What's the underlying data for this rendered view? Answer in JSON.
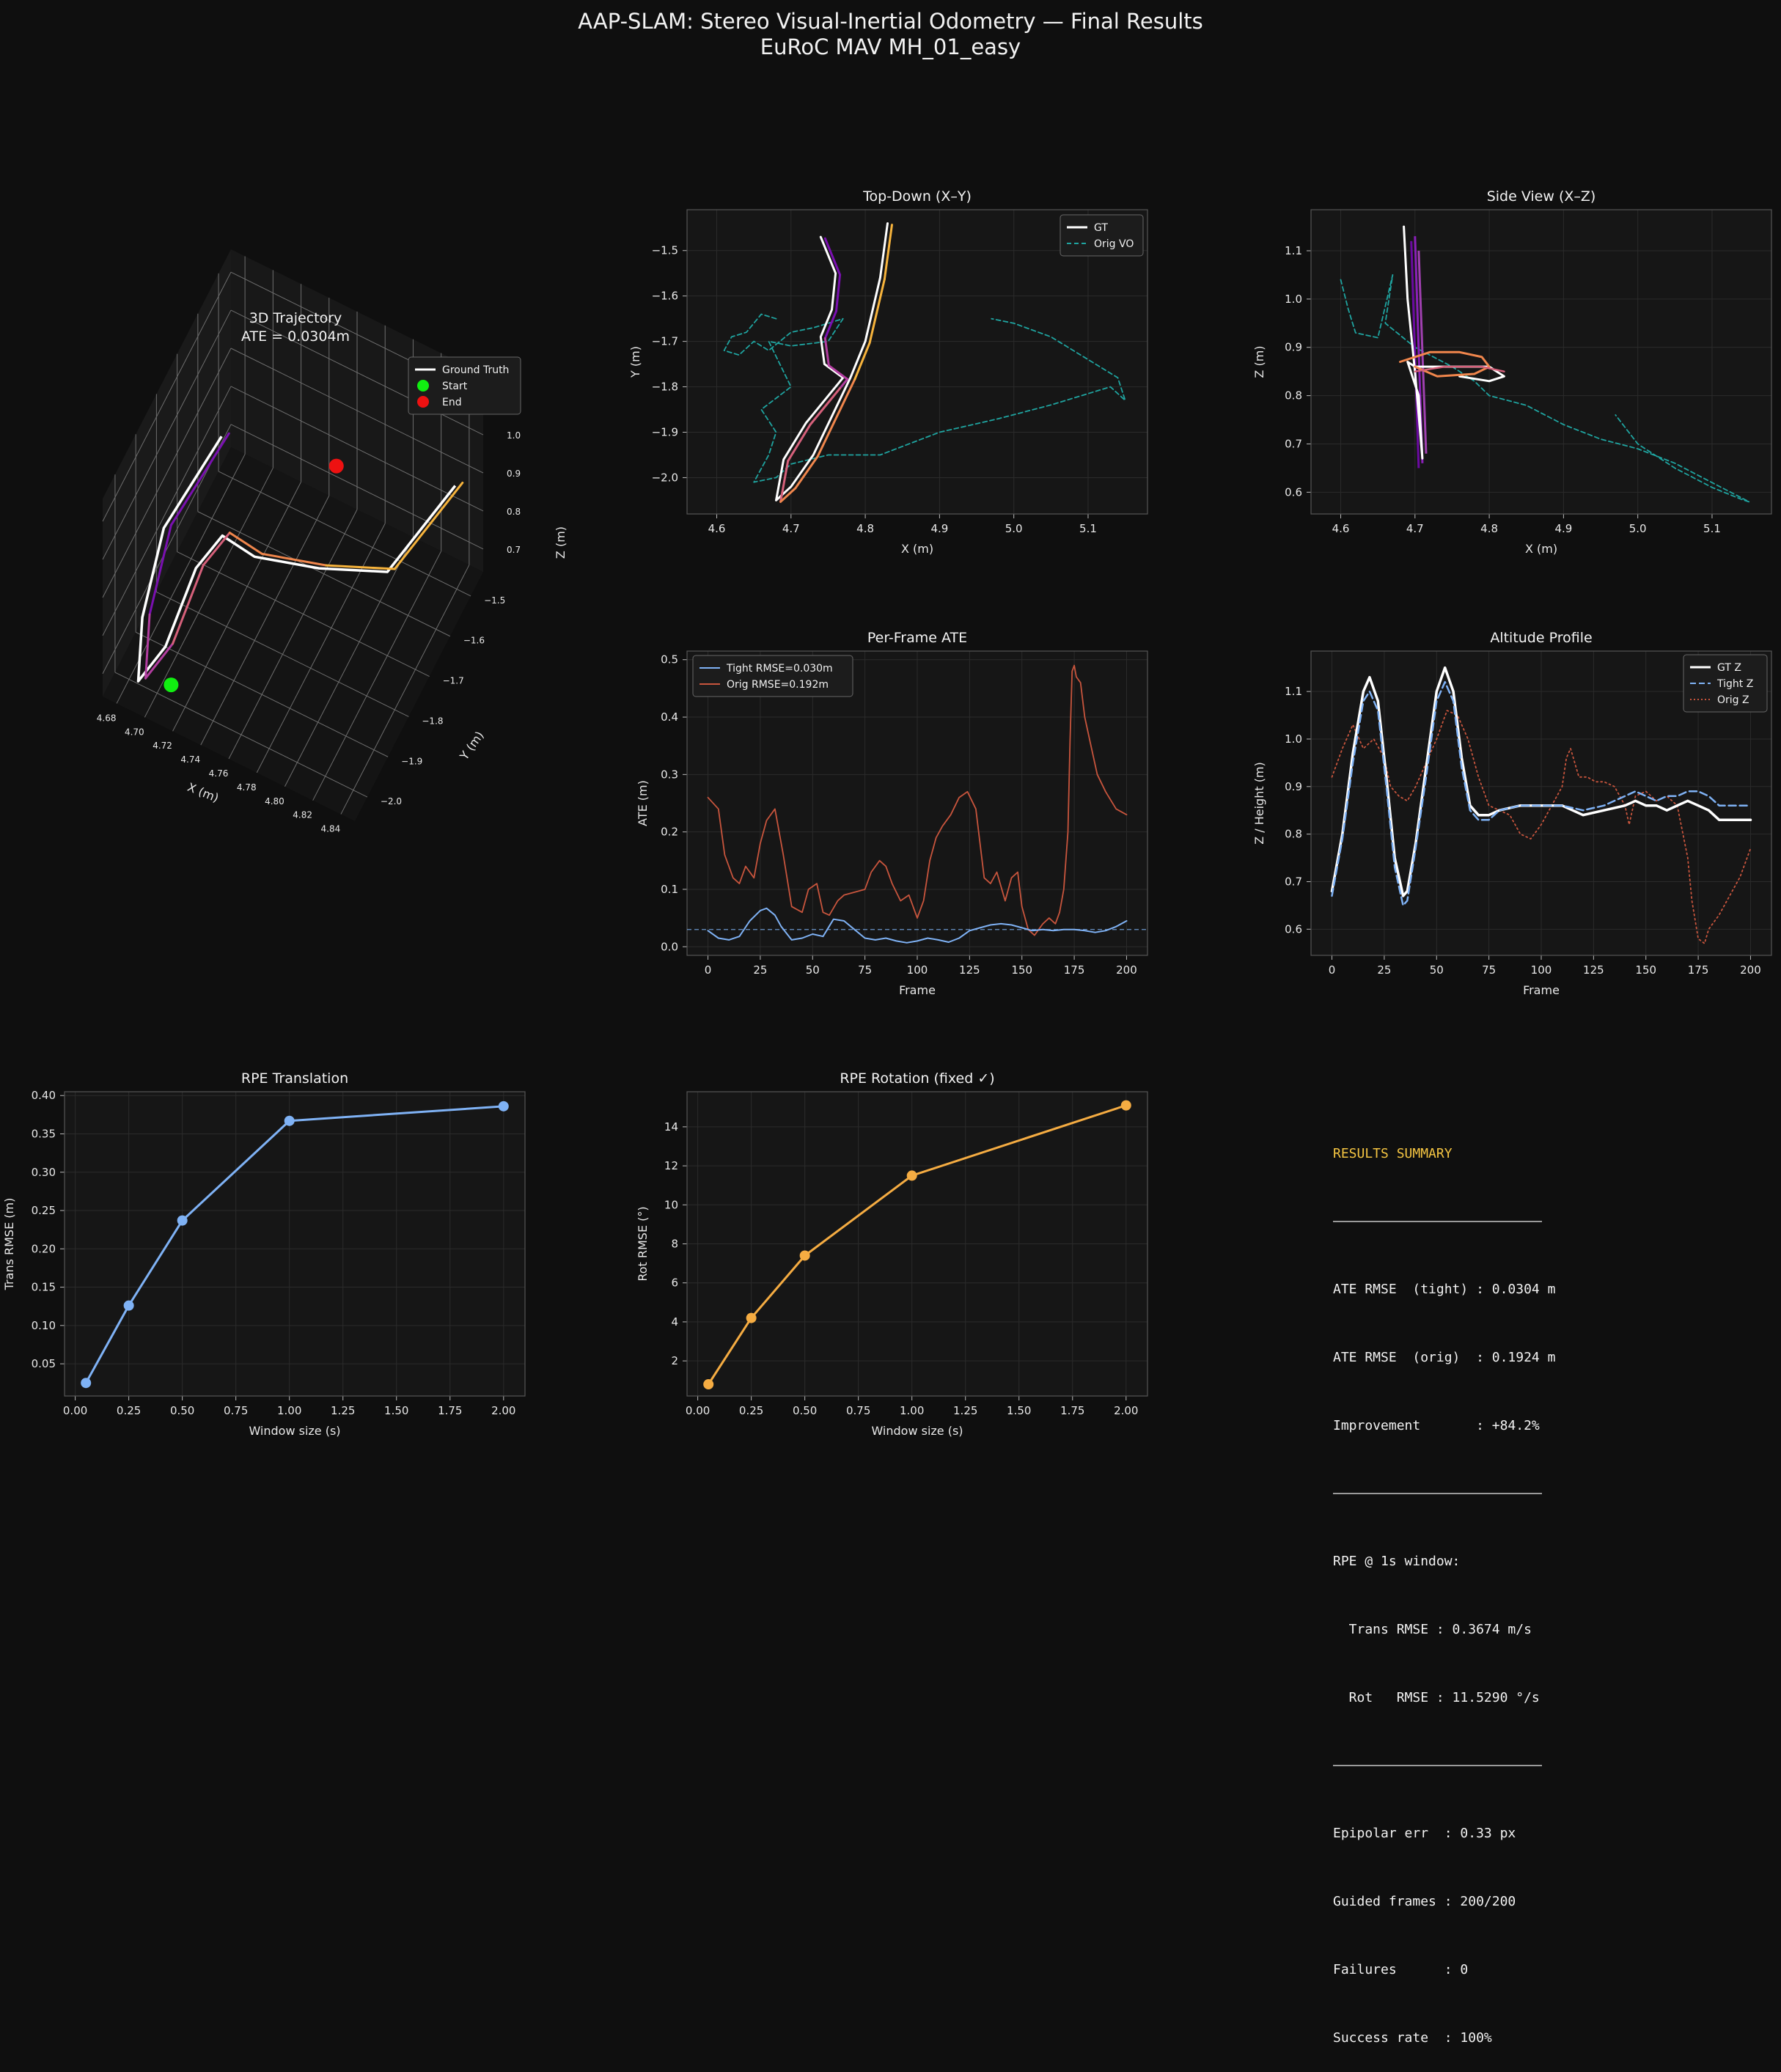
{
  "suptitle": {
    "line1": "AAP-SLAM: Stereo Visual-Inertial Odometry — Final Results",
    "line2": "EuRoC MAV MH_01_easy"
  },
  "colors": {
    "background": "#0f0f0f",
    "axes_bg": "#161616",
    "spine": "#555555",
    "grid": "#2b2b2b",
    "text": "#e8e8e8",
    "gt": "#ffffff",
    "tight": "#7fb2f5",
    "orig_ate": "#c8553d",
    "orig_vo": "#1fa4a0",
    "rpe_trans": "#7fb2f5",
    "rpe_rot": "#f5ac42",
    "accent": "#f5c542",
    "traj_gradient": [
      "#7a10b0",
      "#b23da0",
      "#d5607a",
      "#f0864c",
      "#f6b33c"
    ]
  },
  "chart_data": [
    {
      "id": "traj3d",
      "type": "line",
      "projection": "3d",
      "title": "3D Trajectory",
      "subtitle": "ATE = 0.0304m",
      "xlabel": "X (m)",
      "ylabel": "Y (m)",
      "zlabel": "Z (m)",
      "xlim": [
        4.67,
        4.85
      ],
      "ylim": [
        -2.06,
        -1.44
      ],
      "zlim": [
        0.64,
        1.16
      ],
      "xticks": [
        "4.68",
        "4.70",
        "4.72",
        "4.74",
        "4.76",
        "4.78",
        "4.80",
        "4.82",
        "4.84"
      ],
      "yticks": [
        "−1.5",
        "−1.6",
        "−1.7",
        "−1.8",
        "−1.9",
        "−2.0"
      ],
      "zticks": [
        "0.7",
        "0.8",
        "0.9",
        "1.0",
        "1.1"
      ],
      "legend": {
        "placement": "top-right",
        "entries": [
          "Ground Truth",
          "Start",
          "End"
        ]
      },
      "start_point": [
        4.71,
        -2.0,
        0.68
      ],
      "end_point": [
        4.76,
        -1.54,
        0.86
      ],
      "series": [
        {
          "name": "Ground Truth",
          "color": "#ffffff",
          "x": [
            4.715,
            4.69,
            4.685,
            4.688,
            4.7,
            4.71,
            4.72,
            4.74,
            4.78,
            4.82,
            4.83
          ],
          "y": [
            -1.79,
            -1.9,
            -1.97,
            -2.01,
            -1.96,
            -1.88,
            -1.82,
            -1.8,
            -1.76,
            -1.7,
            -1.44
          ],
          "z": [
            1.12,
            0.95,
            0.78,
            0.66,
            0.72,
            0.86,
            0.9,
            0.86,
            0.86,
            0.86,
            0.83
          ]
        }
      ]
    },
    {
      "id": "topdown",
      "type": "line",
      "title": "Top-Down (X–Y)",
      "xlabel": "X (m)",
      "ylabel": "Y (m)",
      "xlim": [
        4.56,
        5.18
      ],
      "ylim": [
        -2.08,
        -1.41
      ],
      "xticks": [
        4.6,
        4.7,
        4.8,
        4.9,
        5.0,
        5.1
      ],
      "yticks": [
        -1.5,
        -1.6,
        -1.7,
        -1.8,
        -1.9,
        -2.0
      ],
      "legend": {
        "placement": "top-right",
        "entries": [
          "GT",
          "Orig VO"
        ]
      },
      "series": [
        {
          "name": "GT",
          "style": "solid",
          "x": [
            4.74,
            4.76,
            4.755,
            4.74,
            4.745,
            4.77,
            4.76,
            4.72,
            4.69,
            4.68,
            4.7,
            4.73,
            4.78,
            4.8,
            4.82,
            4.83
          ],
          "y": [
            -1.47,
            -1.55,
            -1.63,
            -1.69,
            -1.75,
            -1.78,
            -1.8,
            -1.88,
            -1.96,
            -2.05,
            -2.02,
            -1.95,
            -1.78,
            -1.7,
            -1.56,
            -1.44
          ]
        },
        {
          "name": "Orig VO",
          "style": "dashed",
          "x": [
            4.68,
            4.66,
            4.64,
            4.62,
            4.61,
            4.63,
            4.65,
            4.67,
            4.7,
            4.73,
            4.75,
            4.77,
            4.75,
            4.7,
            4.67,
            4.7,
            4.66,
            4.68,
            4.67,
            4.65,
            4.68,
            4.7,
            4.75,
            4.82,
            4.9,
            4.98,
            5.05,
            5.13,
            5.15,
            5.14,
            5.1,
            5.05,
            5.0,
            4.97
          ],
          "y": [
            -1.65,
            -1.64,
            -1.68,
            -1.69,
            -1.72,
            -1.73,
            -1.7,
            -1.72,
            -1.68,
            -1.67,
            -1.66,
            -1.65,
            -1.7,
            -1.71,
            -1.7,
            -1.8,
            -1.85,
            -1.9,
            -1.95,
            -2.01,
            -2.0,
            -1.97,
            -1.95,
            -1.95,
            -1.9,
            -1.87,
            -1.84,
            -1.8,
            -1.83,
            -1.78,
            -1.74,
            -1.69,
            -1.66,
            -1.65
          ]
        }
      ]
    },
    {
      "id": "sideview",
      "type": "line",
      "title": "Side View (X–Z)",
      "xlabel": "X (m)",
      "ylabel": "Z (m)",
      "xlim": [
        4.56,
        5.18
      ],
      "ylim": [
        0.555,
        1.185
      ],
      "xticks": [
        4.6,
        4.7,
        4.8,
        4.9,
        5.0,
        5.1
      ],
      "yticks": [
        0.6,
        0.7,
        0.8,
        0.9,
        1.0,
        1.1
      ],
      "series": [
        {
          "name": "GT",
          "style": "solid",
          "x": [
            4.685,
            4.69,
            4.7,
            4.71,
            4.705,
            4.69,
            4.7,
            4.75,
            4.8,
            4.82,
            4.8,
            4.76
          ],
          "y": [
            1.15,
            1.0,
            0.85,
            0.67,
            0.8,
            0.87,
            0.86,
            0.86,
            0.86,
            0.84,
            0.83,
            0.84
          ]
        },
        {
          "name": "Orig VO",
          "style": "dashed",
          "x": [
            4.6,
            4.61,
            4.62,
            4.65,
            4.67,
            4.66,
            4.7,
            4.75,
            4.78,
            4.8,
            4.85,
            4.9,
            4.95,
            5.0,
            5.05,
            5.1,
            5.15,
            5.14,
            5.1,
            5.05,
            5.0,
            4.97
          ],
          "y": [
            1.04,
            0.98,
            0.93,
            0.92,
            1.05,
            0.95,
            0.9,
            0.86,
            0.83,
            0.8,
            0.78,
            0.74,
            0.71,
            0.69,
            0.66,
            0.62,
            0.58,
            0.585,
            0.61,
            0.65,
            0.7,
            0.76
          ]
        }
      ]
    },
    {
      "id": "perframe",
      "type": "line",
      "title": "Per-Frame ATE",
      "xlabel": "Frame",
      "ylabel": "ATE (m)",
      "xlim": [
        -10,
        210
      ],
      "ylim": [
        -0.015,
        0.515
      ],
      "xticks": [
        0,
        25,
        50,
        75,
        100,
        125,
        150,
        175,
        200
      ],
      "yticks": [
        0.0,
        0.1,
        0.2,
        0.3,
        0.4,
        0.5
      ],
      "reference_line": 0.03,
      "legend": {
        "placement": "top-left",
        "entries": [
          "Tight  RMSE=0.030m",
          "Orig   RMSE=0.192m"
        ]
      },
      "series": [
        {
          "name": "Tight  RMSE=0.030m",
          "x": [
            0,
            5,
            10,
            15,
            20,
            25,
            28,
            32,
            35,
            40,
            45,
            50,
            55,
            60,
            65,
            70,
            75,
            80,
            85,
            90,
            95,
            100,
            105,
            110,
            115,
            120,
            125,
            130,
            135,
            140,
            145,
            150,
            155,
            160,
            165,
            170,
            175,
            180,
            185,
            190,
            195,
            200
          ],
          "y": [
            0.028,
            0.015,
            0.012,
            0.018,
            0.045,
            0.063,
            0.067,
            0.055,
            0.035,
            0.012,
            0.015,
            0.022,
            0.018,
            0.048,
            0.045,
            0.03,
            0.015,
            0.012,
            0.015,
            0.01,
            0.007,
            0.01,
            0.015,
            0.012,
            0.008,
            0.015,
            0.028,
            0.033,
            0.038,
            0.04,
            0.038,
            0.033,
            0.028,
            0.03,
            0.028,
            0.03,
            0.03,
            0.028,
            0.025,
            0.028,
            0.035,
            0.045
          ]
        },
        {
          "name": "Orig   RMSE=0.192m",
          "x": [
            0,
            5,
            8,
            12,
            15,
            18,
            22,
            25,
            28,
            32,
            36,
            40,
            45,
            48,
            52,
            55,
            58,
            62,
            65,
            70,
            75,
            78,
            82,
            85,
            88,
            92,
            96,
            100,
            103,
            106,
            109,
            112,
            116,
            120,
            124,
            128,
            132,
            135,
            138,
            142,
            145,
            148,
            150,
            153,
            156,
            160,
            163,
            166,
            168,
            170,
            172,
            173,
            174,
            175,
            176,
            178,
            180,
            183,
            186,
            190,
            195,
            200
          ],
          "y": [
            0.26,
            0.24,
            0.16,
            0.12,
            0.11,
            0.14,
            0.12,
            0.18,
            0.22,
            0.24,
            0.16,
            0.07,
            0.06,
            0.1,
            0.11,
            0.06,
            0.055,
            0.08,
            0.09,
            0.095,
            0.1,
            0.13,
            0.15,
            0.14,
            0.11,
            0.08,
            0.09,
            0.05,
            0.08,
            0.15,
            0.19,
            0.21,
            0.23,
            0.26,
            0.27,
            0.24,
            0.12,
            0.11,
            0.13,
            0.08,
            0.12,
            0.13,
            0.07,
            0.03,
            0.02,
            0.04,
            0.05,
            0.04,
            0.06,
            0.1,
            0.2,
            0.36,
            0.48,
            0.49,
            0.47,
            0.46,
            0.4,
            0.35,
            0.3,
            0.27,
            0.24,
            0.23
          ]
        }
      ]
    },
    {
      "id": "altitude",
      "type": "line",
      "title": "Altitude Profile",
      "xlabel": "Frame",
      "ylabel": "Z / Height (m)",
      "xlim": [
        -10,
        210
      ],
      "ylim": [
        0.545,
        1.185
      ],
      "xticks": [
        0,
        25,
        50,
        75,
        100,
        125,
        150,
        175,
        200
      ],
      "yticks": [
        0.6,
        0.7,
        0.8,
        0.9,
        1.0,
        1.1
      ],
      "legend": {
        "placement": "top-right",
        "entries": [
          "GT Z",
          "Tight Z",
          "Orig Z"
        ]
      },
      "series": [
        {
          "name": "GT Z",
          "style": "solid",
          "x": [
            0,
            5,
            10,
            15,
            18,
            22,
            26,
            30,
            34,
            36,
            40,
            45,
            50,
            54,
            58,
            62,
            66,
            70,
            75,
            80,
            90,
            100,
            110,
            120,
            130,
            140,
            145,
            150,
            155,
            160,
            165,
            170,
            175,
            180,
            185,
            190,
            195,
            200
          ],
          "y": [
            0.68,
            0.8,
            0.97,
            1.1,
            1.13,
            1.08,
            0.92,
            0.75,
            0.67,
            0.68,
            0.78,
            0.94,
            1.1,
            1.15,
            1.1,
            0.96,
            0.86,
            0.84,
            0.84,
            0.85,
            0.86,
            0.86,
            0.86,
            0.84,
            0.85,
            0.86,
            0.87,
            0.86,
            0.86,
            0.85,
            0.86,
            0.87,
            0.86,
            0.85,
            0.83,
            0.83,
            0.83,
            0.83
          ]
        },
        {
          "name": "Tight Z",
          "style": "dashed",
          "x": [
            0,
            5,
            10,
            15,
            18,
            22,
            26,
            30,
            34,
            36,
            40,
            45,
            50,
            54,
            58,
            62,
            66,
            70,
            75,
            80,
            90,
            100,
            110,
            120,
            130,
            140,
            145,
            150,
            155,
            160,
            165,
            170,
            175,
            180,
            185,
            190,
            195,
            200
          ],
          "y": [
            0.67,
            0.79,
            0.95,
            1.08,
            1.1,
            1.06,
            0.9,
            0.73,
            0.65,
            0.66,
            0.77,
            0.92,
            1.08,
            1.12,
            1.08,
            0.94,
            0.85,
            0.83,
            0.83,
            0.85,
            0.86,
            0.86,
            0.86,
            0.85,
            0.86,
            0.88,
            0.89,
            0.88,
            0.87,
            0.88,
            0.88,
            0.89,
            0.89,
            0.88,
            0.86,
            0.86,
            0.86,
            0.86
          ]
        },
        {
          "name": "Orig Z",
          "style": "dotted",
          "x": [
            0,
            5,
            10,
            15,
            20,
            25,
            28,
            32,
            36,
            40,
            45,
            50,
            55,
            60,
            65,
            70,
            75,
            80,
            85,
            90,
            95,
            100,
            105,
            110,
            112,
            114,
            118,
            122,
            126,
            130,
            135,
            140,
            142,
            145,
            150,
            155,
            160,
            165,
            170,
            172,
            175,
            178,
            180,
            185,
            190,
            195,
            200
          ],
          "y": [
            0.92,
            0.98,
            1.03,
            0.98,
            1.0,
            0.96,
            0.9,
            0.88,
            0.87,
            0.9,
            0.95,
            1.0,
            1.06,
            1.05,
            1.0,
            0.92,
            0.86,
            0.85,
            0.84,
            0.8,
            0.79,
            0.82,
            0.86,
            0.9,
            0.96,
            0.98,
            0.92,
            0.92,
            0.91,
            0.91,
            0.9,
            0.86,
            0.82,
            0.88,
            0.89,
            0.87,
            0.88,
            0.86,
            0.75,
            0.66,
            0.58,
            0.57,
            0.6,
            0.63,
            0.67,
            0.71,
            0.77
          ]
        }
      ]
    },
    {
      "id": "rpe_trans",
      "type": "line",
      "title": "RPE Translation",
      "xlabel": "Window size (s)",
      "ylabel": "Trans RMSE (m)",
      "xlim": [
        -0.05,
        2.1
      ],
      "ylim": [
        0.008,
        0.405
      ],
      "xticks": [
        "0.00",
        "0.25",
        "0.50",
        "0.75",
        "1.00",
        "1.25",
        "1.50",
        "1.75",
        "2.00"
      ],
      "yticks": [
        "0.05",
        "0.10",
        "0.15",
        "0.20",
        "0.25",
        "0.30",
        "0.35",
        "0.40"
      ],
      "x": [
        0.05,
        0.25,
        0.5,
        1.0,
        2.0
      ],
      "values": [
        0.025,
        0.126,
        0.237,
        0.367,
        0.386
      ]
    },
    {
      "id": "rpe_rot",
      "type": "line",
      "title": "RPE Rotation  (fixed ✓)",
      "xlabel": "Window size (s)",
      "ylabel": "Rot RMSE (°)",
      "xlim": [
        -0.05,
        2.1
      ],
      "ylim": [
        0.2,
        15.8
      ],
      "xticks": [
        "0.00",
        "0.25",
        "0.50",
        "0.75",
        "1.00",
        "1.25",
        "1.50",
        "1.75",
        "2.00"
      ],
      "yticks": [
        "2",
        "4",
        "6",
        "8",
        "10",
        "12",
        "14"
      ],
      "x": [
        0.05,
        0.25,
        0.5,
        1.0,
        2.0
      ],
      "values": [
        0.8,
        4.2,
        7.4,
        11.5,
        15.1
      ]
    }
  ],
  "summary": {
    "header": "RESULTS SUMMARY",
    "ate_tight": "ATE RMSE  (tight) : 0.0304 m",
    "ate_orig": "ATE RMSE  (orig)  : 0.1924 m",
    "improvement": "Improvement       : +84.2%",
    "rpe_header": "RPE @ 1s window:",
    "rpe_trans": "  Trans RMSE : 0.3674 m/s",
    "rpe_rot": "  Rot   RMSE : 11.5290 °/s",
    "epipolar": "Epipolar err  : 0.33 px",
    "guided": "Guided frames : 200/200",
    "failures": "Failures      : 0",
    "success": "Success rate  : 100%"
  }
}
